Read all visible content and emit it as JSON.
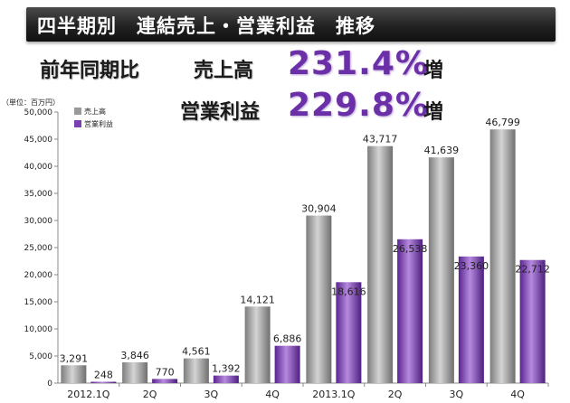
{
  "page": {
    "title": "四半期別　連結売上・営業利益　推移"
  },
  "headline": {
    "period_label": "前年同期比",
    "sales_label": "売上高",
    "sales_value": "231.4%",
    "sales_suffix": "増",
    "profit_label": "営業利益",
    "profit_value": "229.8%",
    "profit_suffix": "増"
  },
  "chart_data": {
    "type": "bar",
    "unit_label": "（単位：百万円）",
    "categories": [
      "2012.1Q",
      "2Q",
      "3Q",
      "4Q",
      "2013.1Q",
      "2Q",
      "3Q",
      "4Q"
    ],
    "series": [
      {
        "name": "売上高",
        "color": "#9a9a9a",
        "values": [
          3291,
          3846,
          4561,
          14121,
          30904,
          43717,
          41639,
          46799
        ],
        "labels": [
          "3,291",
          "3,846",
          "4,561",
          "14,121",
          "30,904",
          "43,717",
          "41,639",
          "46,799"
        ]
      },
      {
        "name": "営業利益",
        "color": "#7b3fb5",
        "values": [
          248,
          770,
          1392,
          6886,
          18616,
          26538,
          23360,
          22712
        ],
        "labels": [
          "248",
          "770",
          "1,392",
          "6,886",
          "18,616",
          "26,538",
          "23,360",
          "22,712"
        ]
      }
    ],
    "ylim": [
      0,
      50000
    ],
    "yticks": [
      0,
      5000,
      10000,
      15000,
      20000,
      25000,
      30000,
      35000,
      40000,
      45000,
      50000
    ],
    "ytick_labels": [
      "0",
      "5,000",
      "10,000",
      "15,000",
      "20,000",
      "25,000",
      "30,000",
      "35,000",
      "40,000",
      "45,000",
      "50,000"
    ],
    "grid": false,
    "legend_position": "top-left"
  }
}
